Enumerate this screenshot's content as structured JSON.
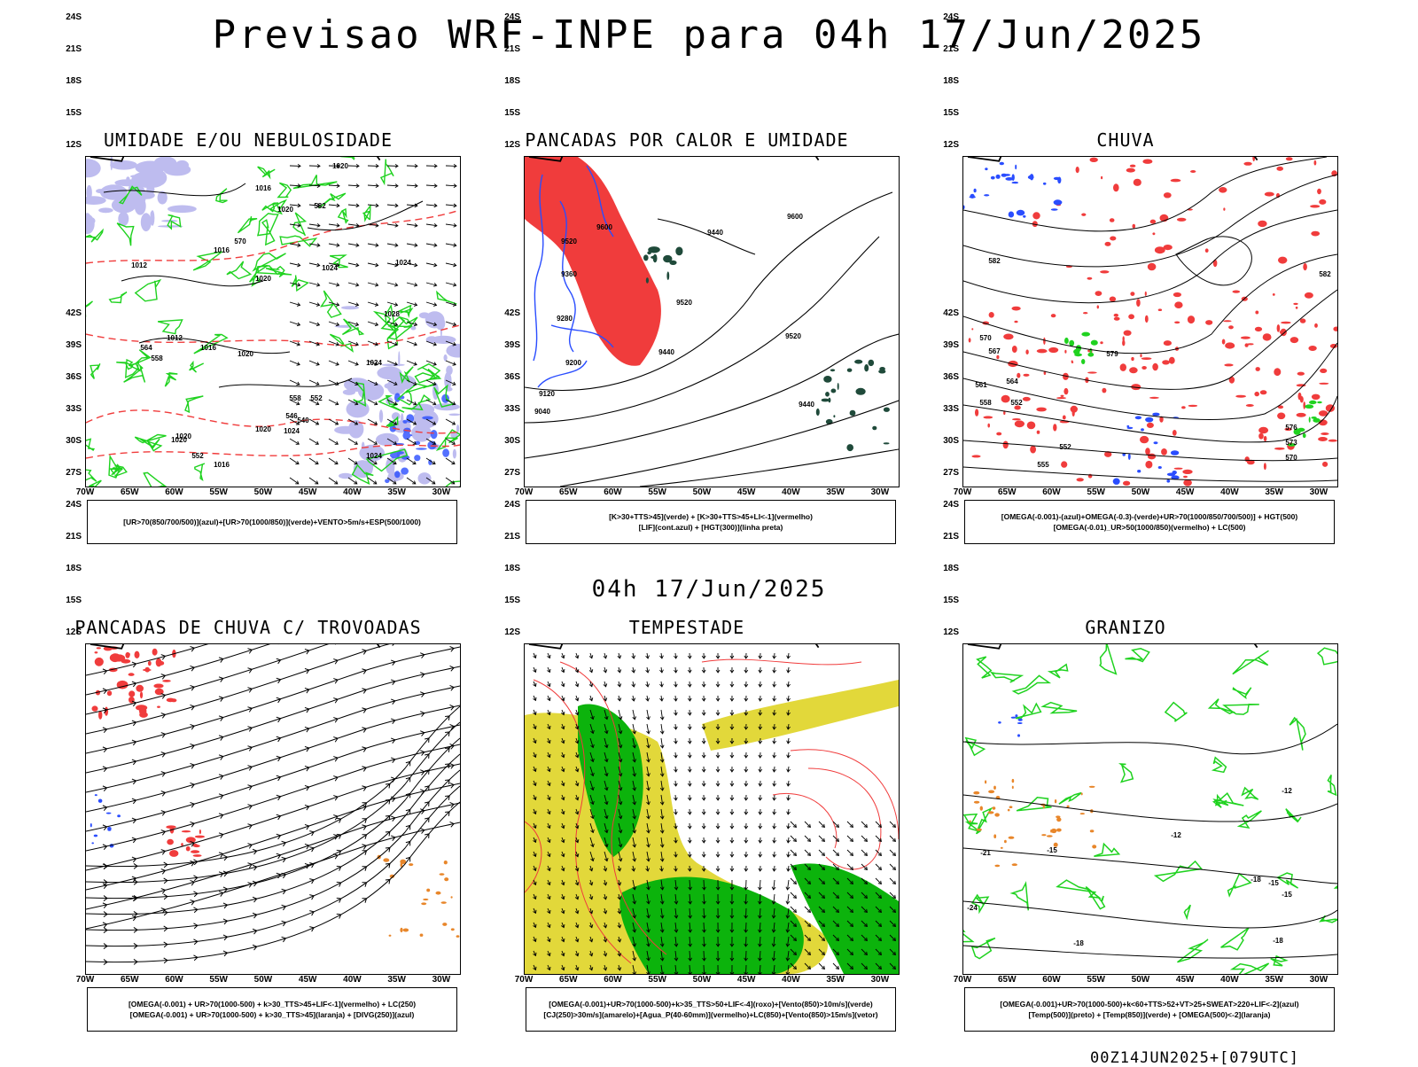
{
  "header": {
    "title": "Previsao WRF-INPE  para 04h 17/Jun/2025",
    "mid_label": "04h 17/Jun/2025",
    "footer": "00Z14JUN2025+[079UTC]"
  },
  "axes": {
    "lat_ticks": [
      "12S",
      "15S",
      "18S",
      "21S",
      "24S",
      "27S",
      "30S",
      "33S",
      "36S",
      "39S",
      "42S"
    ],
    "lon_ticks": [
      "70W",
      "65W",
      "60W",
      "55W",
      "50W",
      "45W",
      "40W",
      "35W",
      "30W"
    ]
  },
  "colors": {
    "red": "#f03c3c",
    "green": "#1fd21f",
    "blue": "#2a4dff",
    "lavender": "#b7b5ee",
    "yellow": "#e2d83a",
    "darkgreen": "#1f4a3a",
    "orange": "#e8862a",
    "strong_green": "#0cb30c"
  },
  "panels": [
    {
      "title": "UMIDADE E/OU NEBULOSIDADE",
      "legend": [
        "[UR>70(850/700/500)](azul)+[UR>70(1000/850)](verde)+VENTO>5m/s+ESP(500/1000)"
      ],
      "contour_labels": [
        "1020",
        "1016",
        "1020",
        "1012",
        "1016",
        "1024",
        "1024",
        "1020",
        "1028",
        "1024",
        "1012",
        "1016",
        "1020",
        "1020",
        "1024",
        "1020",
        "1020",
        "1024",
        "1016",
        "558",
        "552",
        "546",
        "540",
        "570",
        "582",
        "558",
        "564",
        "552"
      ]
    },
    {
      "title": "PANCADAS POR CALOR E UMIDADE",
      "legend": [
        "[K>30+TTS>45](verde) + [K>30+TTS>45+LI<-1](vermelho)",
        "[LIF](cont.azul) + [HGT(300)](linha preta)"
      ],
      "contour_labels": [
        "9600",
        "9520",
        "9600",
        "9440",
        "9360",
        "9520",
        "9280",
        "9520",
        "9200",
        "9440",
        "9120",
        "9040",
        "9440"
      ]
    },
    {
      "title": "CHUVA",
      "legend": [
        "[OMEGA(-0.001)-(azul)+OMEGA(-0.3)-(verde)+UR>70(1000/850/700/500)] + HGT(500)",
        "[OMEGA(-0.01)_UR>50(1000/850)(vermelho) + LC(500)"
      ],
      "contour_labels": [
        "582",
        "582",
        "579",
        "570",
        "567",
        "564",
        "561",
        "558",
        "552",
        "576",
        "573",
        "570",
        "555",
        "552"
      ]
    },
    {
      "title": "PANCADAS DE CHUVA C/ TROVOADAS",
      "legend": [
        "[OMEGA(-0.001) + UR>70(1000-500) + k>30_TTS>45+LIF<-1](vermelho) + LC(250)",
        "[OMEGA(-0.001) + UR>70(1000-500) + k>30_TTS>45](laranja) + [DIVG(250)](azul)"
      ],
      "contour_labels": []
    },
    {
      "title": "TEMPESTADE",
      "legend": [
        "[OMEGA(-0.001)+UR>70(1000-500)+k>35_TTS>50+LIF<-4](roxo)+[Vento(850)>10m/s](verde)",
        "[CJ(250)>30m/s](amarelo)+[Agua_P(40-60mm)](vermelho)+LC(850)+[Vento(850)>15m/s](vetor)"
      ],
      "contour_labels": []
    },
    {
      "title": "GRANIZO",
      "legend": [
        "[OMEGA(-0.001)+UR>70(1000-500)+k<60+TTS>52+VT>25+SWEAT>220+LIF<-2](azul)",
        "[Temp(500)](preto) + [Temp(850)](verde) + [OMEGA(500)<-2](laranja)"
      ],
      "contour_labels": [
        "-12",
        "-12",
        "-15",
        "-18",
        "-21",
        "-15",
        "-15",
        "-18",
        "-18",
        "-24"
      ]
    }
  ]
}
